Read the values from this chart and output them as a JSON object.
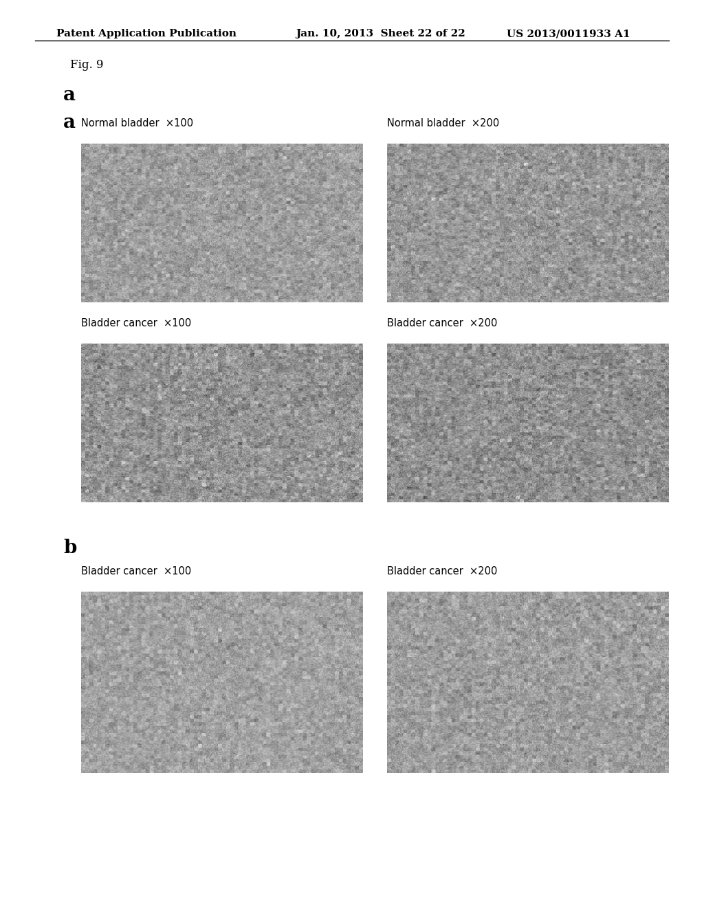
{
  "header_left": "Patent Application Publication",
  "header_mid": "Jan. 10, 2013  Sheet 22 of 22",
  "header_right": "US 2013/0011933 A1",
  "fig_label": "Fig. 9",
  "section_a_label": "a",
  "section_b_label": "b",
  "panel_labels": [
    [
      "Normal bladder  ×100",
      "Normal bladder  ×200"
    ],
    [
      "Bladder cancer  ×100",
      "Bladder cancer  ×200"
    ],
    [
      "Bladder cancer  ×100",
      "Bladder cancer  ×200"
    ]
  ],
  "bg_color": "#ffffff",
  "image_bg_a": "#b0a898",
  "image_bg_b": "#b8b0a0",
  "header_fontsize": 11,
  "fig_label_fontsize": 12,
  "section_label_fontsize": 20,
  "panel_label_fontsize": 10.5
}
